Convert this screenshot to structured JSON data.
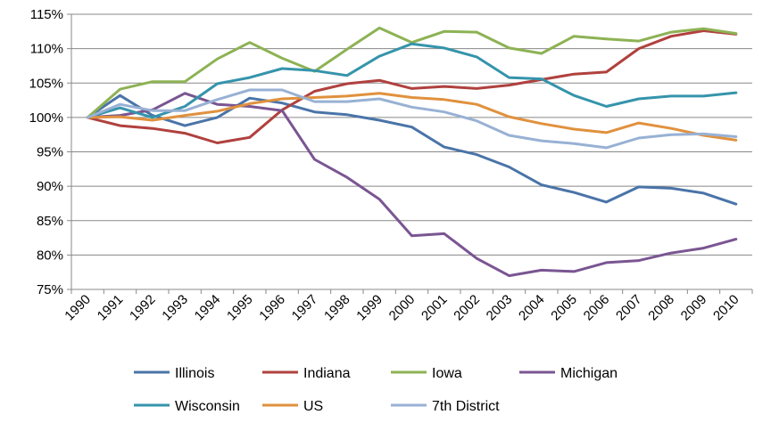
{
  "chart_data": {
    "type": "line",
    "title": "",
    "xlabel": "",
    "ylabel": "",
    "x": [
      "1990",
      "1991",
      "1992",
      "1993",
      "1994",
      "1995",
      "1996",
      "1997",
      "1998",
      "1999",
      "2000",
      "2001",
      "2002",
      "2003",
      "2004",
      "2005",
      "2006",
      "2007",
      "2008",
      "2009",
      "2010"
    ],
    "ylim": [
      75,
      115
    ],
    "y_ticks": [
      "75%",
      "80%",
      "85%",
      "90%",
      "95%",
      "100%",
      "105%",
      "110%",
      "115%"
    ],
    "grid": "horizontal",
    "legend": "bottom",
    "series": [
      {
        "name": "Illinois",
        "color": "#4a74a8",
        "values": [
          100,
          103.2,
          100.3,
          98.8,
          100.0,
          102.8,
          102.1,
          100.8,
          100.4,
          99.6,
          98.6,
          95.7,
          94.6,
          92.8,
          90.2,
          89.1,
          87.7,
          89.9,
          89.7,
          89.0,
          87.4
        ]
      },
      {
        "name": "Indiana",
        "color": "#b0413e",
        "values": [
          100,
          98.8,
          98.4,
          97.7,
          96.3,
          97.1,
          101.1,
          103.8,
          104.9,
          105.4,
          104.2,
          104.5,
          104.2,
          104.7,
          105.5,
          106.3,
          106.6,
          110.0,
          111.8,
          112.6,
          112.1
        ]
      },
      {
        "name": "Iowa",
        "color": "#8db254",
        "values": [
          100,
          104.1,
          105.2,
          105.2,
          108.5,
          110.9,
          108.6,
          106.7,
          109.9,
          113.0,
          110.9,
          112.5,
          112.4,
          110.1,
          109.3,
          111.8,
          111.4,
          111.1,
          112.4,
          112.9,
          112.2
        ]
      },
      {
        "name": "Michigan",
        "color": "#7a5592",
        "values": [
          100,
          100.3,
          101.1,
          103.5,
          101.9,
          101.6,
          101.0,
          93.9,
          91.3,
          88.1,
          82.8,
          83.1,
          79.5,
          77.0,
          77.8,
          77.6,
          78.9,
          79.2,
          80.3,
          81.0,
          82.3
        ]
      },
      {
        "name": "Wisconsin",
        "color": "#3594ab",
        "values": [
          100,
          101.4,
          100.0,
          101.6,
          104.9,
          105.8,
          107.1,
          106.8,
          106.1,
          108.9,
          110.7,
          110.1,
          108.8,
          105.8,
          105.6,
          103.2,
          101.6,
          102.7,
          103.1,
          103.1,
          103.6
        ]
      },
      {
        "name": "US",
        "color": "#e0913e",
        "values": [
          100,
          100.1,
          99.6,
          100.3,
          100.9,
          102.0,
          102.7,
          102.9,
          103.1,
          103.5,
          102.9,
          102.6,
          101.9,
          100.1,
          99.1,
          98.3,
          97.8,
          99.2,
          98.4,
          97.4,
          96.7
        ]
      },
      {
        "name": "7th District",
        "color": "#98b1d4",
        "values": [
          100,
          101.9,
          101.0,
          101.0,
          102.6,
          104.0,
          104.0,
          102.3,
          102.3,
          102.7,
          101.5,
          100.8,
          99.5,
          97.4,
          96.6,
          96.2,
          95.6,
          97.0,
          97.5,
          97.6,
          97.2
        ]
      }
    ]
  }
}
